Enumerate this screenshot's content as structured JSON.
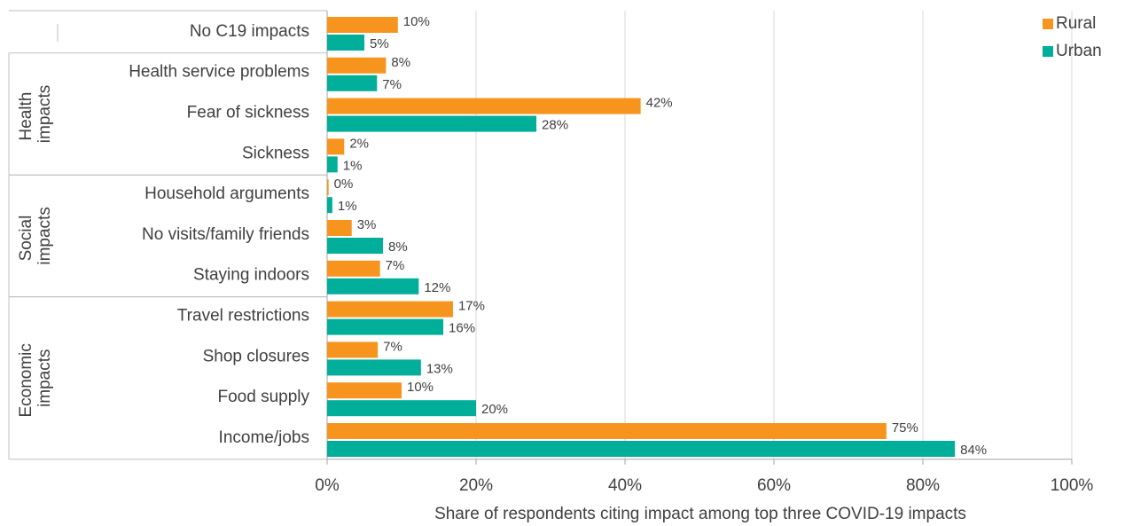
{
  "chart_data": {
    "type": "hbar",
    "x_label": "Share of respondents citing impact among top three COVID-19 impacts",
    "categories": [
      "No C19 impacts",
      "Health service problems",
      "Fear of sickness",
      "Sickness",
      "Household arguments",
      "No visits/family friends",
      "Staying indoors",
      "Travel restrictions",
      "Shop closures",
      "Food supply",
      "Income/jobs"
    ],
    "groups": [
      "Health impacts",
      "Social impacts",
      "Economic impacts"
    ],
    "series": [
      {
        "name": "Rural",
        "color": "#F7941D",
        "values": [
          9.5,
          7.9,
          42.1,
          2.3,
          0.2,
          3.3,
          7.1,
          16.9,
          6.8,
          10.0,
          75.1
        ],
        "value_labels": [
          "10%",
          "8%",
          "42%",
          "2%",
          "0%",
          "3%",
          "7%",
          "17%",
          "7%",
          "10%",
          "75%"
        ]
      },
      {
        "name": "Urban",
        "color": "#00AE9A",
        "values": [
          5,
          6.7,
          28.1,
          1.4,
          0.7,
          7.5,
          12.3,
          15.6,
          12.6,
          20.0,
          84.3
        ],
        "value_labels": [
          "5%",
          "7%",
          "28%",
          "1%",
          "1%",
          "8%",
          "12%",
          "16%",
          "13%",
          "20%",
          "84%"
        ]
      }
    ],
    "xlim": [
      0,
      100
    ],
    "xticks": [
      {
        "value": 0,
        "label": "0%"
      },
      {
        "value": 20,
        "label": "20%"
      },
      {
        "value": 40,
        "label": "40%"
      },
      {
        "value": 60,
        "label": "60%"
      },
      {
        "value": 80,
        "label": "80%"
      },
      {
        "value": 100,
        "label": "100%"
      }
    ],
    "grid": true,
    "legend": "top-right"
  }
}
